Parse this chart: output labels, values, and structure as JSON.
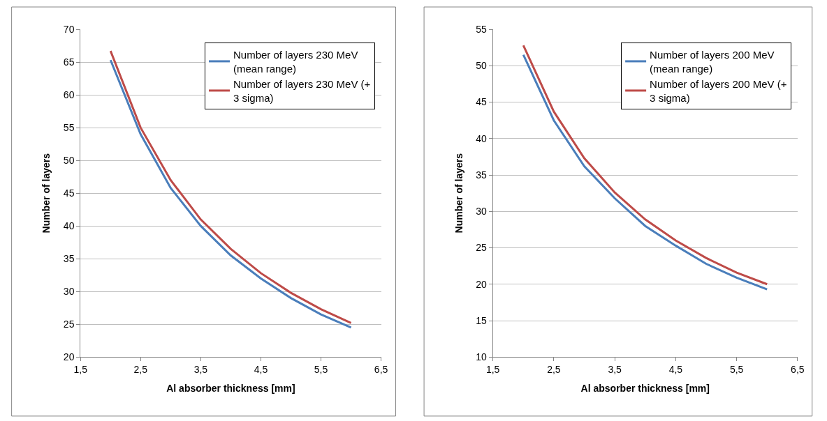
{
  "chart_data": [
    {
      "type": "line",
      "xlabel": "Al absorber thickness [mm]",
      "ylabel": "Number of layers",
      "x": [
        2,
        2.5,
        3,
        3.5,
        4,
        4.5,
        5,
        5.5,
        6
      ],
      "series": [
        {
          "name": "Number of layers 230 MeV (mean range)",
          "color": "#4a7ebb",
          "values": [
            65.3,
            54,
            45.8,
            40,
            35.5,
            32,
            29,
            26.5,
            24.5
          ]
        },
        {
          "name": "Number of layers 230 MeV (+ 3 sigma)",
          "color": "#be4b48",
          "values": [
            66.7,
            55,
            47,
            41,
            36.5,
            32.8,
            29.8,
            27.3,
            25.2
          ]
        }
      ],
      "xlim": [
        1.5,
        6.5
      ],
      "xticks": [
        {
          "value": 1.5,
          "label": "1,5"
        },
        {
          "value": 2.5,
          "label": "2,5"
        },
        {
          "value": 3.5,
          "label": "3,5"
        },
        {
          "value": 4.5,
          "label": "4,5"
        },
        {
          "value": 5.5,
          "label": "5,5"
        },
        {
          "value": 6.5,
          "label": "6,5"
        }
      ],
      "ylim": [
        20,
        70
      ],
      "yticks": [
        20,
        25,
        30,
        35,
        40,
        45,
        50,
        55,
        60,
        65,
        70
      ],
      "grid": "y",
      "legend": "top right",
      "marker": "none",
      "line_style": "solid"
    },
    {
      "type": "line",
      "xlabel": "Al absorber thickness [mm]",
      "ylabel": "Number of layers",
      "x": [
        2,
        2.5,
        3,
        3.5,
        4,
        4.5,
        5,
        5.5,
        6
      ],
      "series": [
        {
          "name": "Number of layers 200 MeV (mean range)",
          "color": "#4a7ebb",
          "values": [
            51.5,
            42.5,
            36.2,
            31.8,
            28,
            25.3,
            22.8,
            20.9,
            19.3
          ]
        },
        {
          "name": "Number of layers 200 MeV (+ 3 sigma)",
          "color": "#be4b48",
          "values": [
            52.8,
            43.7,
            37.3,
            32.6,
            28.9,
            26,
            23.6,
            21.6,
            20
          ]
        }
      ],
      "xlim": [
        1.5,
        6.5
      ],
      "xticks": [
        {
          "value": 1.5,
          "label": "1,5"
        },
        {
          "value": 2.5,
          "label": "2,5"
        },
        {
          "value": 3.5,
          "label": "3,5"
        },
        {
          "value": 4.5,
          "label": "4,5"
        },
        {
          "value": 5.5,
          "label": "5,5"
        },
        {
          "value": 6.5,
          "label": "6,5"
        }
      ],
      "ylim": [
        10,
        55
      ],
      "yticks": [
        10,
        15,
        20,
        25,
        30,
        35,
        40,
        45,
        50,
        55
      ],
      "grid": "y",
      "legend": "top right",
      "marker": "none",
      "line_style": "solid"
    }
  ]
}
